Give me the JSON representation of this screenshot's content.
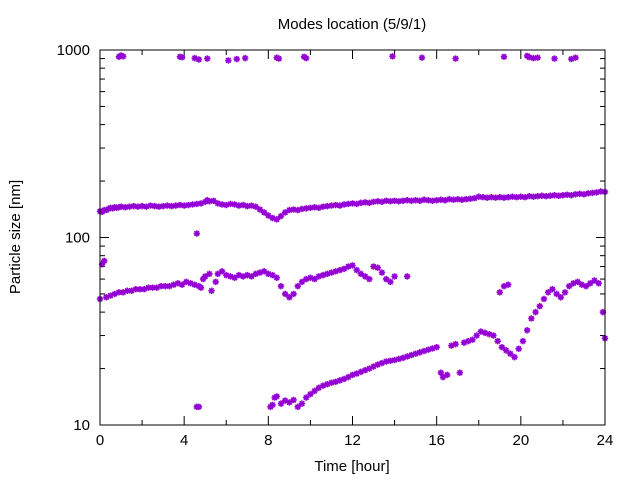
{
  "chart_data": {
    "type": "scatter",
    "title": "Modes location (5/9/1)",
    "xlabel": "Time [hour]",
    "ylabel": "Particle size [nm]",
    "xlim": [
      0,
      24
    ],
    "ylim": [
      10,
      1000
    ],
    "yscale": "log",
    "grid": false,
    "legend": "none",
    "marker_color": "#9400d3",
    "x_ticks": [
      "0",
      "4",
      "8",
      "12",
      "16",
      "20",
      "24"
    ],
    "y_ticks": [
      "10",
      "100",
      "1000"
    ],
    "series": [
      {
        "values": [
          [
            0.0,
            138
          ],
          [
            0.1,
            137
          ],
          [
            0.2,
            140
          ],
          [
            0.3,
            140
          ],
          [
            0.4,
            142
          ],
          [
            0.5,
            144
          ],
          [
            0.6,
            143
          ],
          [
            0.7,
            145
          ],
          [
            0.8,
            144
          ],
          [
            0.9,
            145
          ],
          [
            1.0,
            146
          ],
          [
            1.2,
            145
          ],
          [
            1.4,
            146
          ],
          [
            1.6,
            147
          ],
          [
            1.8,
            146
          ],
          [
            2.0,
            147
          ],
          [
            2.2,
            146
          ],
          [
            2.4,
            148
          ],
          [
            2.6,
            147
          ],
          [
            2.8,
            146
          ],
          [
            3.0,
            147
          ],
          [
            3.2,
            148
          ],
          [
            3.4,
            147
          ],
          [
            3.6,
            148
          ],
          [
            3.8,
            149
          ],
          [
            4.0,
            148
          ],
          [
            4.2,
            149
          ],
          [
            4.4,
            150
          ],
          [
            4.6,
            151
          ],
          [
            4.8,
            152
          ],
          [
            5.0,
            155
          ],
          [
            5.1,
            158
          ],
          [
            5.2,
            156
          ],
          [
            5.4,
            157
          ],
          [
            5.6,
            152
          ],
          [
            5.8,
            150
          ],
          [
            6.0,
            149
          ],
          [
            6.2,
            151
          ],
          [
            6.4,
            150
          ],
          [
            6.6,
            148
          ],
          [
            6.8,
            149
          ],
          [
            7.0,
            147
          ],
          [
            7.2,
            148
          ],
          [
            7.4,
            146
          ],
          [
            7.6,
            141
          ],
          [
            7.8,
            136
          ],
          [
            8.0,
            131
          ],
          [
            8.2,
            127
          ],
          [
            8.4,
            125
          ],
          [
            8.6,
            130
          ],
          [
            8.8,
            136
          ],
          [
            9.0,
            140
          ],
          [
            9.2,
            141
          ],
          [
            9.4,
            140
          ],
          [
            9.6,
            142
          ],
          [
            9.8,
            143
          ],
          [
            10.0,
            144
          ],
          [
            10.2,
            145
          ],
          [
            10.4,
            144
          ],
          [
            10.6,
            146
          ],
          [
            10.8,
            147
          ],
          [
            11.0,
            148
          ],
          [
            11.2,
            149
          ],
          [
            11.4,
            148
          ],
          [
            11.6,
            150
          ],
          [
            11.8,
            151
          ],
          [
            12.0,
            152
          ],
          [
            12.2,
            151
          ],
          [
            12.4,
            153
          ],
          [
            12.6,
            154
          ],
          [
            12.8,
            153
          ],
          [
            13.0,
            155
          ],
          [
            13.2,
            156
          ],
          [
            13.4,
            155
          ],
          [
            13.6,
            157
          ],
          [
            13.8,
            156
          ],
          [
            14.0,
            157
          ],
          [
            14.2,
            156
          ],
          [
            14.4,
            157
          ],
          [
            14.6,
            158
          ],
          [
            14.8,
            157
          ],
          [
            15.0,
            158
          ],
          [
            15.2,
            157
          ],
          [
            15.4,
            159
          ],
          [
            15.6,
            158
          ],
          [
            15.8,
            157
          ],
          [
            16.0,
            158
          ],
          [
            16.2,
            159
          ],
          [
            16.4,
            158
          ],
          [
            16.6,
            160
          ],
          [
            16.8,
            159
          ],
          [
            17.0,
            160
          ],
          [
            17.2,
            159
          ],
          [
            17.4,
            160
          ],
          [
            17.6,
            161
          ],
          [
            17.8,
            162
          ],
          [
            18.0,
            165
          ],
          [
            18.2,
            164
          ],
          [
            18.4,
            163
          ],
          [
            18.6,
            164
          ],
          [
            18.8,
            163
          ],
          [
            19.0,
            164
          ],
          [
            19.2,
            163
          ],
          [
            19.4,
            164
          ],
          [
            19.6,
            165
          ],
          [
            19.8,
            164
          ],
          [
            20.0,
            165
          ],
          [
            20.2,
            164
          ],
          [
            20.4,
            166
          ],
          [
            20.6,
            165
          ],
          [
            20.8,
            166
          ],
          [
            21.0,
            167
          ],
          [
            21.2,
            166
          ],
          [
            21.4,
            167
          ],
          [
            21.6,
            168
          ],
          [
            21.8,
            167
          ],
          [
            22.0,
            168
          ],
          [
            22.2,
            169
          ],
          [
            22.4,
            168
          ],
          [
            22.6,
            170
          ],
          [
            22.8,
            171
          ],
          [
            23.0,
            170
          ],
          [
            23.2,
            172
          ],
          [
            23.4,
            173
          ],
          [
            23.6,
            174
          ],
          [
            23.8,
            176
          ],
          [
            24.0,
            175
          ]
        ]
      },
      {
        "values": [
          [
            0.0,
            47
          ],
          [
            0.1,
            72
          ],
          [
            0.2,
            75
          ],
          [
            0.3,
            48
          ],
          [
            0.5,
            49
          ],
          [
            0.7,
            50
          ],
          [
            0.9,
            51
          ],
          [
            1.1,
            51
          ],
          [
            1.3,
            52
          ],
          [
            1.5,
            52
          ],
          [
            1.7,
            53
          ],
          [
            1.9,
            53
          ],
          [
            2.1,
            53
          ],
          [
            2.3,
            54
          ],
          [
            2.5,
            54
          ],
          [
            2.7,
            54
          ],
          [
            2.9,
            55
          ],
          [
            3.1,
            55
          ],
          [
            3.3,
            55
          ],
          [
            3.5,
            56
          ],
          [
            3.7,
            57
          ],
          [
            3.9,
            56
          ],
          [
            4.1,
            58
          ],
          [
            4.3,
            57
          ],
          [
            4.5,
            56
          ],
          [
            4.7,
            55
          ],
          [
            4.8,
            54
          ],
          [
            4.9,
            60
          ],
          [
            5.0,
            62
          ],
          [
            5.2,
            64
          ],
          [
            5.3,
            52
          ],
          [
            5.5,
            58
          ],
          [
            5.6,
            64
          ],
          [
            5.8,
            66
          ],
          [
            6.0,
            63
          ],
          [
            6.2,
            62
          ],
          [
            6.4,
            61
          ],
          [
            6.6,
            63
          ],
          [
            6.8,
            62
          ],
          [
            7.0,
            63
          ],
          [
            7.2,
            62
          ],
          [
            7.4,
            64
          ],
          [
            7.6,
            65
          ],
          [
            7.8,
            66
          ],
          [
            8.0,
            64
          ],
          [
            8.2,
            63
          ],
          [
            8.4,
            61
          ],
          [
            8.6,
            55
          ],
          [
            8.8,
            50
          ],
          [
            9.0,
            48
          ],
          [
            9.2,
            50
          ],
          [
            9.4,
            55
          ],
          [
            9.6,
            58
          ],
          [
            9.8,
            60
          ],
          [
            10.0,
            61
          ],
          [
            10.2,
            60
          ],
          [
            10.4,
            62
          ],
          [
            10.6,
            63
          ],
          [
            10.8,
            64
          ],
          [
            11.0,
            65
          ],
          [
            11.2,
            66
          ],
          [
            11.4,
            67
          ],
          [
            11.6,
            68
          ],
          [
            11.8,
            70
          ],
          [
            12.0,
            71
          ],
          [
            12.2,
            67
          ],
          [
            12.4,
            64
          ],
          [
            12.6,
            62
          ],
          [
            12.8,
            60
          ],
          [
            13.0,
            70
          ],
          [
            13.2,
            69
          ],
          [
            13.4,
            65
          ],
          [
            13.6,
            60
          ],
          [
            13.8,
            58
          ],
          [
            14.0,
            62
          ],
          [
            14.6,
            62
          ]
        ]
      },
      {
        "values": [
          [
            4.6,
            12.5
          ],
          [
            4.7,
            12.5
          ],
          [
            8.1,
            12.5
          ],
          [
            8.2,
            12.8
          ],
          [
            8.3,
            14.0
          ],
          [
            8.4,
            14.2
          ],
          [
            8.6,
            13.0
          ],
          [
            8.8,
            13.5
          ],
          [
            9.0,
            13.2
          ],
          [
            9.2,
            13.6
          ],
          [
            9.4,
            12.5
          ],
          [
            9.6,
            13.0
          ],
          [
            9.8,
            14.0
          ],
          [
            10.0,
            14.6
          ],
          [
            10.2,
            15.2
          ],
          [
            10.4,
            15.8
          ],
          [
            10.6,
            16.2
          ],
          [
            10.8,
            16.5
          ],
          [
            11.0,
            16.8
          ],
          [
            11.2,
            17.0
          ],
          [
            11.4,
            17.3
          ],
          [
            11.6,
            17.6
          ],
          [
            11.8,
            18.0
          ],
          [
            12.0,
            18.5
          ],
          [
            12.2,
            18.8
          ],
          [
            12.4,
            19.2
          ],
          [
            12.6,
            19.6
          ],
          [
            12.8,
            20.0
          ],
          [
            13.0,
            20.5
          ],
          [
            13.2,
            21.0
          ],
          [
            13.4,
            21.4
          ],
          [
            13.6,
            21.8
          ],
          [
            13.8,
            22.0
          ],
          [
            14.0,
            22.2
          ],
          [
            14.2,
            22.5
          ],
          [
            14.4,
            22.8
          ],
          [
            14.6,
            23.2
          ],
          [
            14.8,
            23.6
          ],
          [
            15.0,
            24.0
          ],
          [
            15.2,
            24.4
          ],
          [
            15.4,
            24.8
          ],
          [
            15.6,
            25.2
          ],
          [
            15.8,
            25.6
          ],
          [
            16.0,
            26.0
          ],
          [
            16.2,
            19.0
          ],
          [
            16.3,
            18.0
          ],
          [
            16.5,
            18.5
          ],
          [
            16.7,
            26.5
          ],
          [
            16.9,
            27.0
          ],
          [
            17.1,
            19.0
          ],
          [
            17.3,
            27.5
          ],
          [
            17.5,
            28.0
          ],
          [
            17.7,
            28.5
          ],
          [
            17.9,
            30.0
          ],
          [
            18.1,
            31.5
          ],
          [
            18.3,
            31.0
          ],
          [
            18.5,
            30.5
          ],
          [
            18.7,
            30.0
          ],
          [
            18.9,
            28.0
          ],
          [
            19.1,
            26.0
          ],
          [
            19.3,
            25.0
          ],
          [
            19.5,
            24.0
          ],
          [
            19.7,
            23.0
          ],
          [
            19.9,
            25.5
          ],
          [
            19.2,
            55.0
          ],
          [
            19.4,
            56.0
          ],
          [
            19.0,
            51.0
          ],
          [
            20.1,
            28.0
          ],
          [
            20.3,
            32.0
          ],
          [
            20.5,
            37.0
          ],
          [
            20.7,
            40.0
          ],
          [
            20.9,
            43.0
          ],
          [
            21.1,
            47.0
          ],
          [
            21.3,
            51.0
          ],
          [
            21.5,
            53.0
          ],
          [
            21.7,
            50.0
          ],
          [
            21.9,
            48.0
          ],
          [
            22.1,
            51.0
          ],
          [
            22.3,
            55.0
          ],
          [
            22.5,
            57.0
          ],
          [
            22.7,
            58.0
          ],
          [
            22.9,
            56.0
          ],
          [
            23.1,
            55.0
          ],
          [
            23.3,
            57.0
          ],
          [
            23.5,
            59.0
          ],
          [
            23.7,
            57.0
          ],
          [
            23.9,
            40.0
          ],
          [
            24.0,
            29.0
          ]
        ]
      },
      {
        "values": [
          [
            0.9,
            920
          ],
          [
            1.0,
            935
          ],
          [
            1.1,
            925
          ],
          [
            3.8,
            920
          ],
          [
            3.9,
            915
          ],
          [
            4.5,
            905
          ],
          [
            4.7,
            890
          ],
          [
            5.1,
            900
          ],
          [
            6.1,
            880
          ],
          [
            6.5,
            895
          ],
          [
            6.9,
            905
          ],
          [
            8.4,
            910
          ],
          [
            8.5,
            900
          ],
          [
            9.7,
            920
          ],
          [
            9.8,
            905
          ],
          [
            13.9,
            925
          ],
          [
            15.3,
            910
          ],
          [
            16.9,
            900
          ],
          [
            19.2,
            920
          ],
          [
            20.3,
            930
          ],
          [
            20.4,
            915
          ],
          [
            20.6,
            905
          ],
          [
            20.8,
            910
          ],
          [
            21.6,
            900
          ],
          [
            22.4,
            895
          ],
          [
            22.6,
            910
          ],
          [
            4.6,
            105
          ]
        ]
      }
    ]
  }
}
